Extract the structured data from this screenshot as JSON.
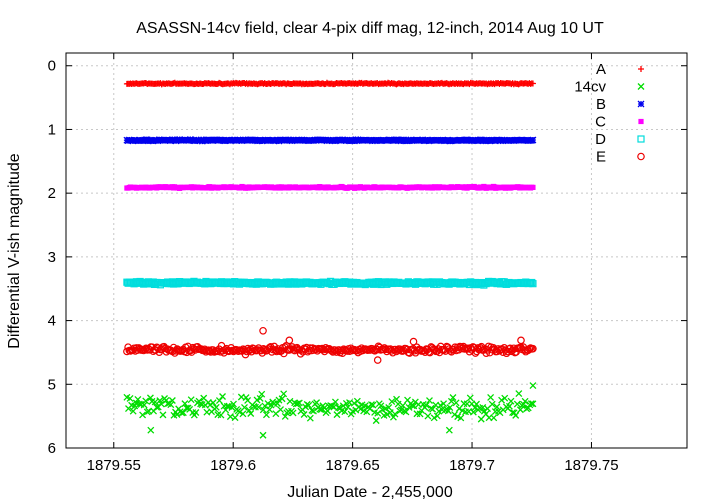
{
  "chart_data": {
    "type": "scatter",
    "title": "ASASSN-14cv field, clear 4-pix diff mag, 12-inch, 2014 Aug 10 UT",
    "xlabel": "Julian Date - 2,455,000",
    "ylabel": "Differential V-ish magnitude",
    "xlim": [
      1879.53,
      1879.79
    ],
    "ylim": [
      -0.2,
      6.0
    ],
    "y_inverted": true,
    "grid": true,
    "legend_position": "top-right",
    "x_ticks": [
      {
        "value": 1879.55,
        "label": "1879.55"
      },
      {
        "value": 1879.6,
        "label": "1879.6"
      },
      {
        "value": 1879.65,
        "label": "1879.65"
      },
      {
        "value": 1879.7,
        "label": "1879.7"
      },
      {
        "value": 1879.75,
        "label": "1879.75"
      }
    ],
    "y_ticks": [
      {
        "value": 0,
        "label": "0"
      },
      {
        "value": 1,
        "label": "1"
      },
      {
        "value": 2,
        "label": "2"
      },
      {
        "value": 3,
        "label": "3"
      },
      {
        "value": 4,
        "label": "4"
      },
      {
        "value": 5,
        "label": "5"
      },
      {
        "value": 6,
        "label": "6"
      }
    ],
    "x_range_observed": [
      1879.5555,
      1879.7255
    ],
    "series": [
      {
        "name": "A",
        "color": "#ff0000",
        "marker": "plus",
        "mean": 0.28,
        "scatter": 0.01
      },
      {
        "name": "14cv",
        "color": "#00dd00",
        "marker": "x",
        "mean": 5.36,
        "scatter": 0.17
      },
      {
        "name": "B",
        "color": "#0000ee",
        "marker": "star",
        "mean": 1.17,
        "scatter": 0.01
      },
      {
        "name": "C",
        "color": "#ff00ff",
        "marker": "filled-square",
        "mean": 1.91,
        "scatter": 0.012
      },
      {
        "name": "D",
        "color": "#00dddd",
        "marker": "open-square",
        "mean": 3.41,
        "scatter": 0.025
      },
      {
        "name": "E",
        "color": "#ee0000",
        "marker": "open-circle",
        "mean": 4.46,
        "scatter": 0.05
      }
    ],
    "e_outliers": [
      {
        "x": 1879.6125,
        "y": 4.16
      },
      {
        "x": 1879.6235,
        "y": 4.31
      },
      {
        "x": 1879.6605,
        "y": 4.62
      },
      {
        "x": 1879.6755,
        "y": 4.33
      },
      {
        "x": 1879.7205,
        "y": 4.31
      }
    ],
    "cv_outliers": [
      {
        "x": 1879.6125,
        "y": 5.8
      },
      {
        "x": 1879.5655,
        "y": 5.72
      },
      {
        "x": 1879.6905,
        "y": 5.72
      },
      {
        "x": 1879.7255,
        "y": 5.02
      }
    ]
  }
}
